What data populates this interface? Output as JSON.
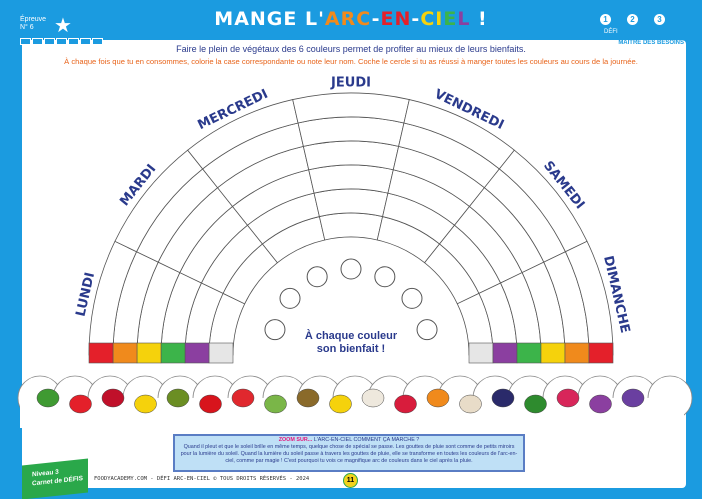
{
  "header": {
    "epreuve": "Épreuve",
    "epreuve_num": "N° 6",
    "title_part1": "MANGE L'",
    "title_rainbow": [
      {
        "t": "ARC",
        "c": "#f08a1c"
      },
      {
        "t": "-",
        "c": "#fff"
      },
      {
        "t": "EN",
        "c": "#e4202a"
      },
      {
        "t": "-",
        "c": "#fff"
      },
      {
        "t": "CI",
        "c": "#f5d20c"
      },
      {
        "t": "E",
        "c": "#3cb44a"
      },
      {
        "t": "L",
        "c": "#8b3fa0"
      }
    ],
    "title_end": " !",
    "badge_nums": [
      "1",
      "2",
      "3"
    ],
    "defi": "DÉFI",
    "maitre": "MAÎTRE DES BESOINS"
  },
  "intro": {
    "line1": "Faire le plein de végétaux des 6 couleurs permet de profiter au mieux de leurs bienfaits.",
    "line2": "À chaque fois que tu en consommes, colorie la case correspondante ou note leur nom. Coche le cercle si tu as réussi à manger toutes les couleurs au cours de la journée."
  },
  "days": [
    "LUNDI",
    "MARDI",
    "MERCREDI",
    "JEUDI",
    "VENDREDI",
    "SAMEDI",
    "DIMANCHE"
  ],
  "ring_colors": [
    "#e4202a",
    "#f08a1c",
    "#f5d20c",
    "#3cb44a",
    "#8b3fa0",
    "#e6e6e6"
  ],
  "center_text": "À chaque couleur son bienfait !",
  "foods_left": [
    {
      "n": "cucumber",
      "c": "#3f9a32"
    },
    {
      "n": "tomato",
      "c": "#e4202a"
    },
    {
      "n": "cherries",
      "c": "#c0102a"
    },
    {
      "n": "lemon",
      "c": "#f5d20c"
    },
    {
      "n": "avocado",
      "c": "#6b8e23"
    },
    {
      "n": "pepper",
      "c": "#d8141c"
    },
    {
      "n": "strawberry",
      "c": "#e0282e"
    },
    {
      "n": "asparagus",
      "c": "#7ab648"
    },
    {
      "n": "kiwi",
      "c": "#8a6a2a"
    },
    {
      "n": "banana",
      "c": "#f5d20c"
    },
    {
      "n": "garlic",
      "c": "#eee8dd"
    }
  ],
  "foods_right": [
    {
      "n": "raspberries",
      "c": "#d81c3c"
    },
    {
      "n": "orange",
      "c": "#f08a1c"
    },
    {
      "n": "mushroom",
      "c": "#e8dcc8"
    },
    {
      "n": "blueberries",
      "c": "#2a2a6a"
    },
    {
      "n": "broccoli",
      "c": "#2e8b2e"
    },
    {
      "n": "radish",
      "c": "#d8265a"
    },
    {
      "n": "onion",
      "c": "#8b3fa0"
    },
    {
      "n": "grapes",
      "c": "#6a3fa0"
    }
  ],
  "zoom": {
    "label": "ZOOM SUR...",
    "title": "L'ARC-EN-CIEL COMMENT ÇA MARCHE ?",
    "body": "Quand il pleut et que le soleil brille en même temps, quelque chose de spécial se passe. Les gouttes de pluie sont comme de petits miroirs pour la lumière du soleil. Quand la lumière du soleil passe à travers les gouttes de pluie, elle se transforme en toutes les couleurs de l'arc-en-ciel, comme par magie ! C'est pourquoi tu vois ce magnifique arc de couleurs dans le ciel après la pluie."
  },
  "footer": {
    "niveau": "Niveau 3",
    "carnet": "Carnet de DÉFIS",
    "credits": "FOODYACADEMY.COM - DÉFI ARC-EN-CIEL © TOUS DROITS RÉSERVÉS - 2024",
    "page": "11"
  }
}
